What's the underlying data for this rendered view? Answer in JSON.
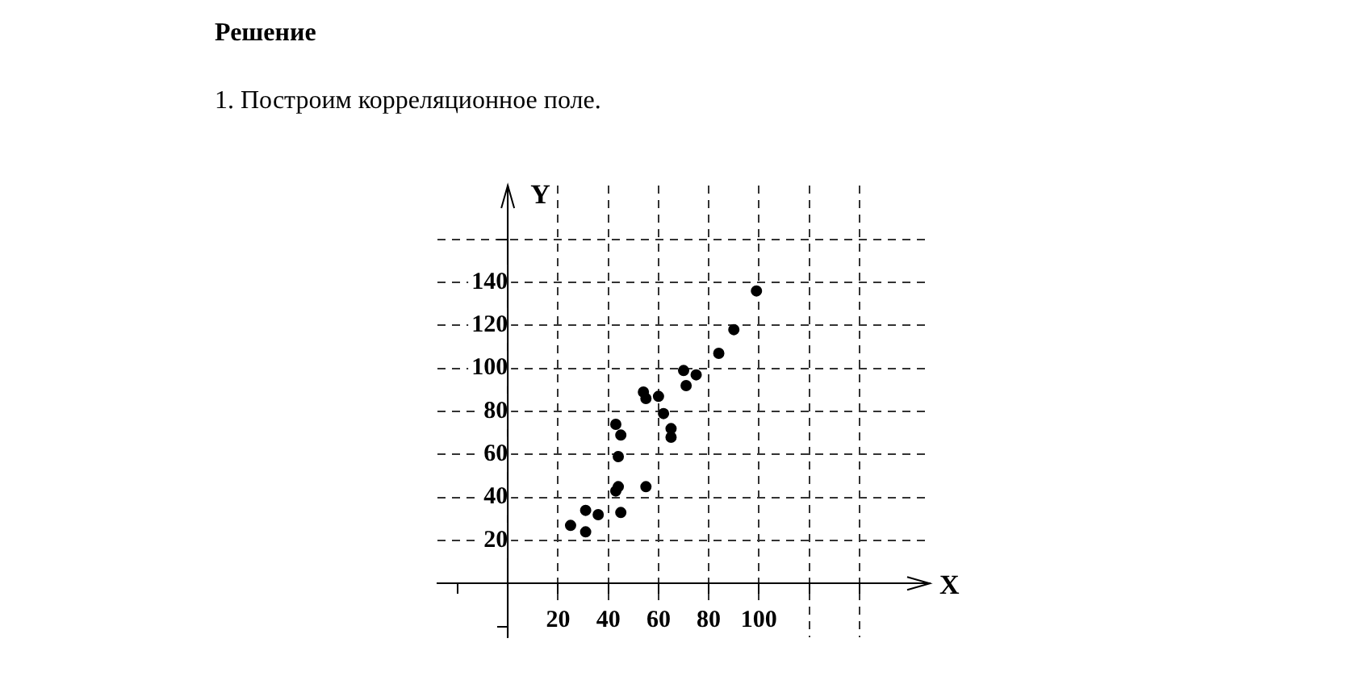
{
  "chart_data": {
    "type": "scatter",
    "title": "Решение",
    "subtitle": "1. Построим корреляционное поле.",
    "xlabel": "X",
    "ylabel": "Y",
    "x": [
      25,
      31,
      31,
      36,
      45,
      43,
      44,
      55,
      44,
      43,
      45,
      54,
      55,
      60,
      62,
      65,
      65,
      70,
      71,
      75,
      84,
      90,
      99
    ],
    "series": [
      {
        "color": "#000000",
        "values": [
          27,
          24,
          34,
          32,
          33,
          43,
          45,
          45,
          59,
          74,
          69,
          89,
          86,
          87,
          79,
          72,
          68,
          99,
          92,
          97,
          107,
          118,
          136
        ]
      }
    ],
    "xlim": [
      -28,
      168
    ],
    "ylim": [
      -25,
      185
    ],
    "xticks": [
      {
        "value": -20,
        "label": null
      },
      20,
      40,
      60,
      80,
      100,
      {
        "value": 120,
        "label": null
      },
      {
        "value": 140,
        "label": null
      }
    ],
    "yticks": [
      {
        "value": -20,
        "label": null
      },
      20,
      40,
      60,
      80,
      100,
      120,
      140,
      {
        "value": 160,
        "label": null
      }
    ],
    "grid": true,
    "marker": "circle",
    "legend": false
  }
}
